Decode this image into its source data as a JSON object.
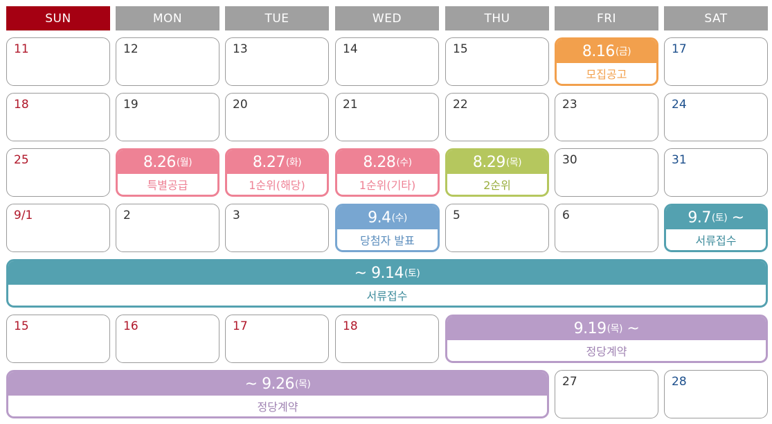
{
  "colors": {
    "sun_header": "#a50012",
    "weekday_header": "#a0a0a0",
    "orange": "#f2a04d",
    "pink": "#ee8295",
    "green": "#b5c75e",
    "blue": "#78a6d1",
    "teal": "#54a1b0",
    "purple": "#b89cc8"
  },
  "headers": [
    "SUN",
    "MON",
    "TUE",
    "WED",
    "THU",
    "FRI",
    "SAT"
  ],
  "week1": [
    "11",
    "12",
    "13",
    "14",
    "15",
    "17"
  ],
  "week2": [
    "18",
    "19",
    "20",
    "21",
    "22",
    "23",
    "24"
  ],
  "week3": [
    "25",
    "30",
    "31"
  ],
  "week4": [
    "9/1",
    "2",
    "3",
    "5",
    "6"
  ],
  "week6": [
    "15",
    "16",
    "17",
    "18"
  ],
  "week7": [
    "27",
    "28"
  ],
  "events": {
    "e816": {
      "date": "8.16",
      "day": "(금)",
      "label": "모집공고"
    },
    "e826": {
      "date": "8.26",
      "day": "(월)",
      "label": "특별공급"
    },
    "e827": {
      "date": "8.27",
      "day": "(화)",
      "label": "1순위(해당)"
    },
    "e828": {
      "date": "8.28",
      "day": "(수)",
      "label": "1순위(기타)"
    },
    "e829": {
      "date": "8.29",
      "day": "(목)",
      "label": "2순위"
    },
    "e94": {
      "date": "9.4",
      "day": "(수)",
      "label": "당첨자 발표"
    },
    "e97": {
      "date": "9.7",
      "day": "(토)",
      "suffix": " ~",
      "label": "서류접수"
    },
    "e914": {
      "prefix": "~ ",
      "date": "9.14",
      "day": "(토)",
      "label": "서류접수"
    },
    "e919": {
      "date": "9.19",
      "day": "(목)",
      "suffix": " ~",
      "label": "정당계약"
    },
    "e926": {
      "prefix": "~ ",
      "date": "9.26",
      "day": "(목)",
      "label": "정당계약"
    }
  }
}
